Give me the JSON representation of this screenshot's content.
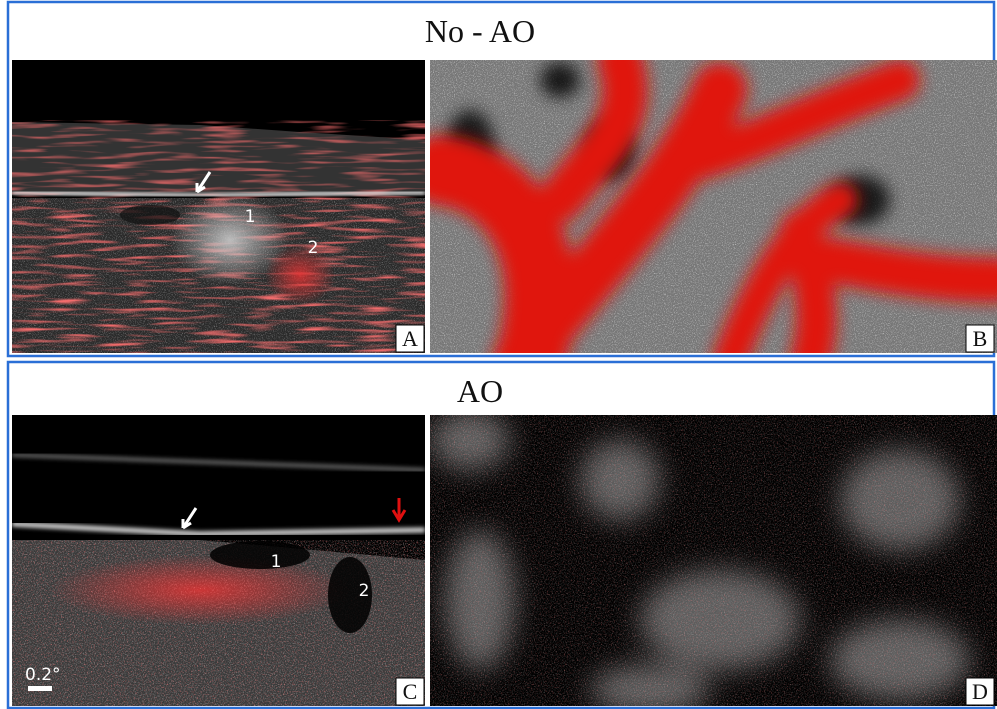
{
  "panels": [
    {
      "title": "No - AO",
      "images": [
        {
          "label": "A",
          "annotations": [
            "1",
            "2"
          ]
        },
        {
          "label": "B"
        }
      ]
    },
    {
      "title": "AO",
      "images": [
        {
          "label": "C",
          "annotations": [
            "1",
            "2"
          ],
          "scale": "0.2°"
        },
        {
          "label": "D"
        }
      ]
    }
  ]
}
